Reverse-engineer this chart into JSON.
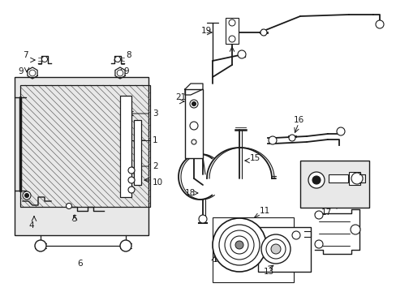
{
  "bg_color": "#ffffff",
  "line_color": "#1a1a1a",
  "fill_gray": "#e8e8e8",
  "lw_main": 1.3,
  "lw_thin": 0.8,
  "lw_thick": 1.5
}
